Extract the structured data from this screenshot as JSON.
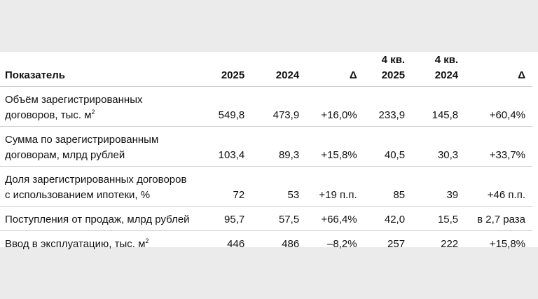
{
  "header": {
    "indicator": "Показатель",
    "y2025": "2025",
    "y2024": "2024",
    "delta": "Δ",
    "q4_2025_line1": "4 кв.",
    "q4_2025_line2": "2025",
    "q4_2024_line1": "4 кв.",
    "q4_2024_line2": "2024",
    "q_delta": "Δ"
  },
  "rows": [
    {
      "label_line1": "Объём зарегистрированных",
      "label_line2": "договоров, тыс. м",
      "label_sup": "2",
      "v2025": "549,8",
      "v2024": "473,9",
      "delta": "+16,0%",
      "q2025": "233,9",
      "q2024": "145,8",
      "qdelta": "+60,4%"
    },
    {
      "label_line1": "Сумма по зарегистрированным",
      "label_line2": "договорам, млрд рублей",
      "v2025": "103,4",
      "v2024": "89,3",
      "delta": "+15,8%",
      "q2025": "40,5",
      "q2024": "30,3",
      "qdelta": "+33,7%"
    },
    {
      "label_line1": "Доля зарегистрированных договоров",
      "label_line2": "с использованием ипотеки, %",
      "v2025": "72",
      "v2024": "53",
      "delta": "+19 п.п.",
      "q2025": "85",
      "q2024": "39",
      "qdelta": "+46 п.п."
    },
    {
      "label": "Поступления от продаж, млрд рублей",
      "v2025": "95,7",
      "v2024": "57,5",
      "delta": "+66,4%",
      "q2025": "42,0",
      "q2024": "15,5",
      "qdelta": "в 2,7 раза"
    },
    {
      "label": "Ввод в эксплуатацию, тыс. м",
      "label_sup": "2",
      "v2025": "446",
      "v2024": "486",
      "delta": "–8,2%",
      "q2025": "257",
      "q2024": "222",
      "qdelta": "+15,8%"
    }
  ]
}
